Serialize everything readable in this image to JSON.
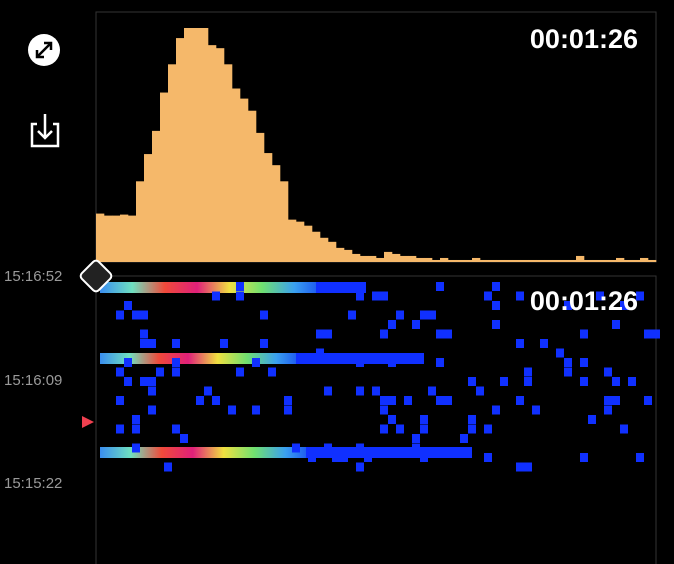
{
  "histogram": {
    "type": "bar",
    "time_label": "00:01:26",
    "color": "#f5b86a",
    "values": [
      48,
      46,
      46,
      47,
      46,
      80,
      107,
      130,
      168,
      196,
      222,
      232,
      232,
      232,
      215,
      212,
      196,
      172,
      162,
      150,
      128,
      108,
      96,
      80,
      42,
      40,
      36,
      30,
      24,
      20,
      14,
      12,
      8,
      6,
      6,
      4,
      10,
      8,
      6,
      6,
      4,
      4,
      2,
      4,
      2,
      2,
      2,
      4,
      2,
      2,
      2,
      2,
      2,
      2,
      2,
      2,
      2,
      2,
      2,
      2,
      6,
      2,
      2,
      2,
      2,
      4,
      2,
      2,
      4,
      2
    ]
  },
  "waterfall": {
    "time_label": "00:01:26",
    "timestamps": [
      "15:16:52",
      "15:16:09",
      "15:15:22"
    ]
  }
}
